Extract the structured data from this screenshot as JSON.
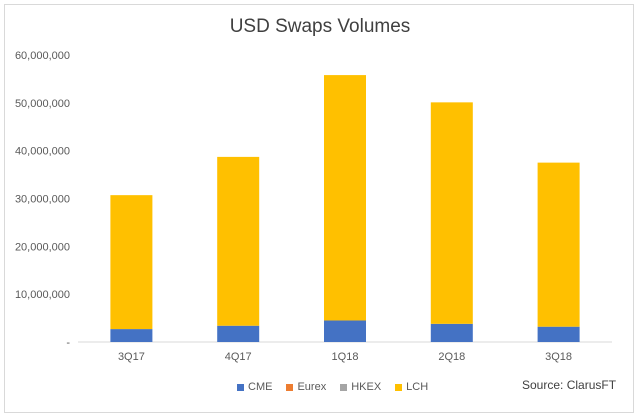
{
  "chart_data": {
    "type": "bar",
    "stacked": true,
    "title": "USD Swaps Volumes",
    "categories": [
      "3Q17",
      "4Q17",
      "1Q18",
      "2Q18",
      "3Q18"
    ],
    "series": [
      {
        "name": "CME",
        "color": "#4472C4",
        "values": [
          2700000,
          3400000,
          4500000,
          3800000,
          3200000
        ]
      },
      {
        "name": "Eurex",
        "color": "#ED7D31",
        "values": [
          0,
          0,
          0,
          0,
          0
        ]
      },
      {
        "name": "HKEX",
        "color": "#A5A5A5",
        "values": [
          0,
          0,
          0,
          0,
          0
        ]
      },
      {
        "name": "LCH",
        "color": "#FFC000",
        "values": [
          28000000,
          35300000,
          51300000,
          46300000,
          34300000
        ]
      }
    ],
    "ylim": [
      0,
      60000000
    ],
    "yticks": [
      "-",
      "10,000,000",
      "20,000,000",
      "30,000,000",
      "40,000,000",
      "50,000,000",
      "60,000,000"
    ],
    "grid": false,
    "legend_position": "bottom"
  },
  "source": "Source: ClarusFT"
}
